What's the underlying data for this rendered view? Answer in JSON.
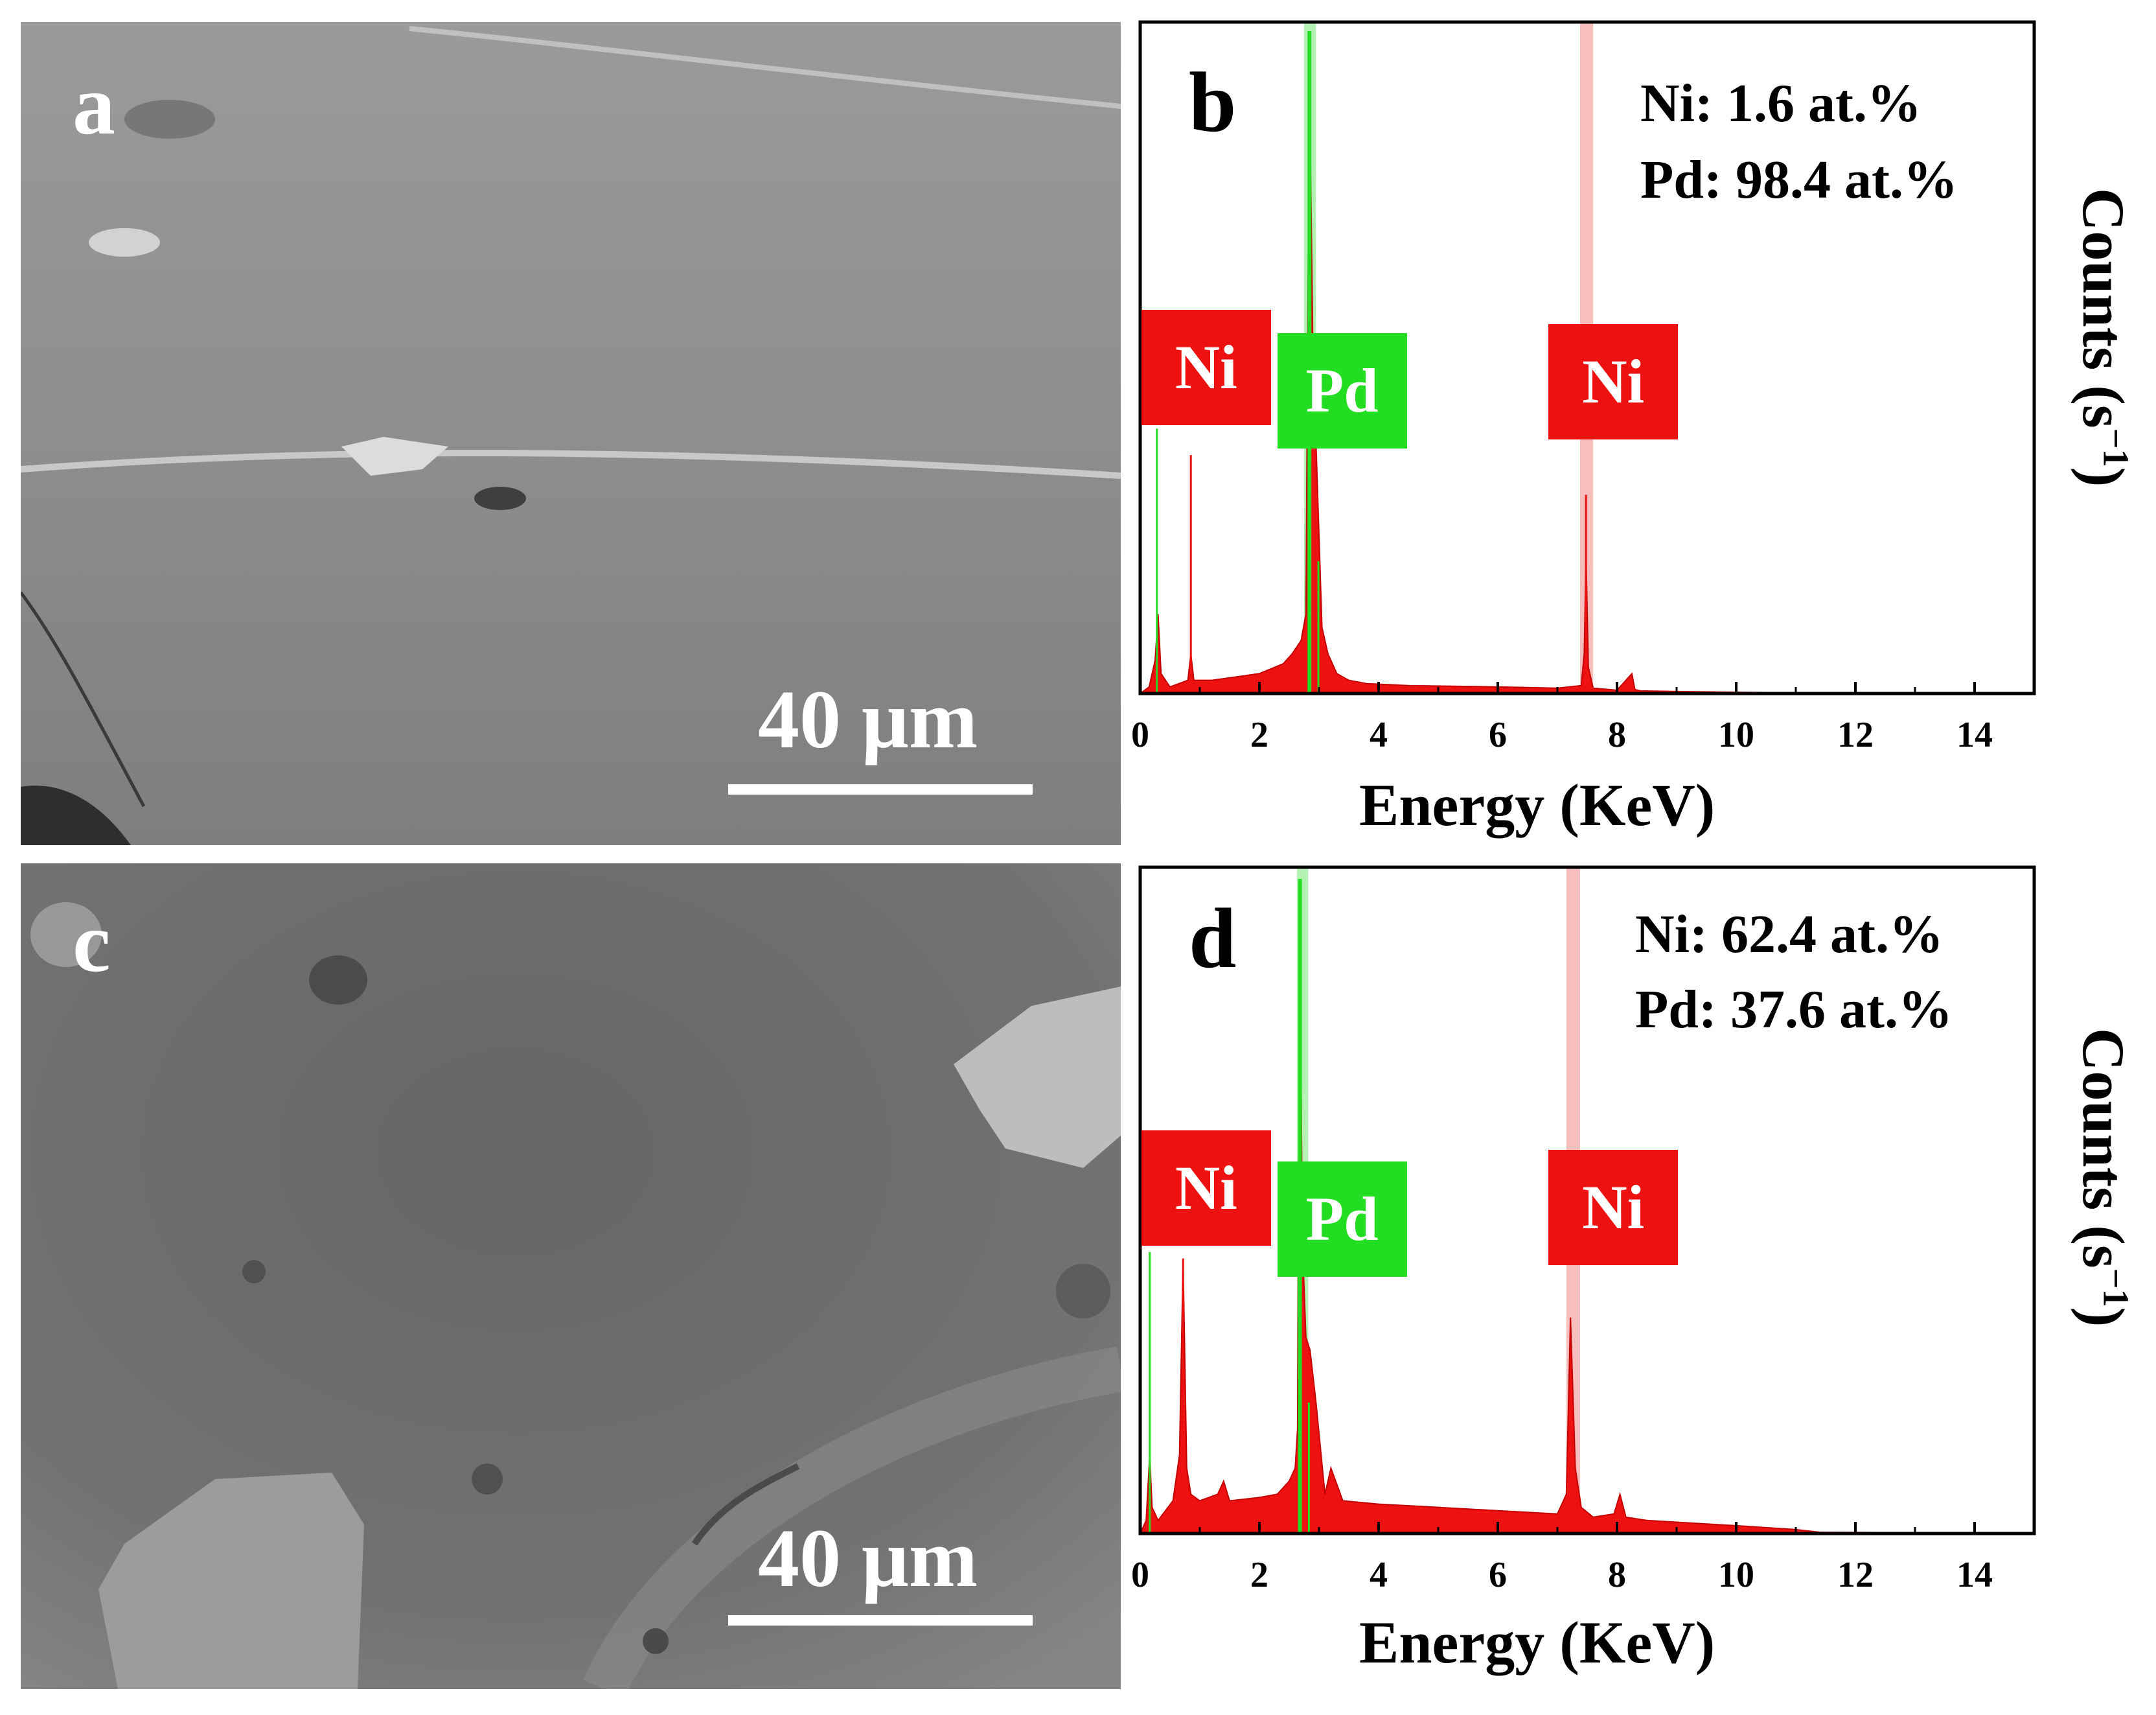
{
  "sem_panels": [
    {
      "letter": "a",
      "scale_label": "40 μm"
    },
    {
      "letter": "c",
      "scale_label": "40 μm"
    }
  ],
  "colors": {
    "ni": "#ee1111",
    "pd": "#22dd22",
    "ni_band": "#f6b3b3",
    "pd_band": "#a6f0a6",
    "axis": "#000000",
    "sem_a": "#8c8c8c",
    "sem_c": "#6e6e6e"
  },
  "chart_data": [
    {
      "panel": "b",
      "type": "area",
      "xlabel": "Energy (KeV)",
      "ylabel_main": "Counts (s",
      "ylabel_sup": "−1",
      "ylabel_end": ")",
      "xlim": [
        0,
        15
      ],
      "xticks": [
        0,
        2,
        4,
        6,
        8,
        10,
        12,
        14
      ],
      "ylim": [
        0,
        1
      ],
      "composition": [
        "Ni: 1.6 at.%",
        "Pd: 98.4 at.%"
      ],
      "peak_labels": [
        {
          "text": "Ni",
          "element": "Ni",
          "energy": 1.0
        },
        {
          "text": "Pd",
          "element": "Pd",
          "energy": 3.5
        },
        {
          "text": "Ni",
          "element": "Ni",
          "energy": 7.8
        }
      ],
      "highlight_bands": [
        {
          "element": "Pd",
          "from": 2.75,
          "to": 2.95
        },
        {
          "element": "Ni",
          "from": 7.38,
          "to": 7.6
        }
      ],
      "lines": [
        {
          "element": "Pd",
          "energy": 0.28,
          "height": 0.4
        },
        {
          "element": "Ni",
          "energy": 0.85,
          "height": 0.36
        },
        {
          "element": "Pd",
          "energy": 2.84,
          "height": 1.0
        },
        {
          "element": "Pd",
          "energy": 2.99,
          "height": 0.2
        },
        {
          "element": "Ni",
          "energy": 7.48,
          "height": 0.3
        }
      ],
      "spectrum": {
        "energy": [
          0,
          0.15,
          0.25,
          0.3,
          0.35,
          0.5,
          0.8,
          0.85,
          0.9,
          1.2,
          1.6,
          2.0,
          2.4,
          2.55,
          2.7,
          2.78,
          2.84,
          2.9,
          2.96,
          3.05,
          3.15,
          3.3,
          3.5,
          3.8,
          4.5,
          6.0,
          7.0,
          7.4,
          7.45,
          7.48,
          7.52,
          7.6,
          8.0,
          8.25,
          8.3,
          8.4,
          9.0,
          10.0,
          11.0,
          15.0
        ],
        "counts": [
          0,
          0.01,
          0.05,
          0.12,
          0.03,
          0.01,
          0.02,
          0.06,
          0.02,
          0.02,
          0.025,
          0.03,
          0.045,
          0.06,
          0.08,
          0.12,
          0.93,
          0.5,
          0.35,
          0.1,
          0.06,
          0.03,
          0.02,
          0.015,
          0.012,
          0.01,
          0.008,
          0.012,
          0.06,
          0.21,
          0.04,
          0.008,
          0.005,
          0.03,
          0.006,
          0.004,
          0.003,
          0.002,
          0.001,
          0
        ]
      }
    },
    {
      "panel": "d",
      "type": "area",
      "xlabel": "Energy (KeV)",
      "ylabel_main": "Counts (s",
      "ylabel_sup": "−1",
      "ylabel_end": ")",
      "xlim": [
        0,
        15
      ],
      "xticks": [
        0,
        2,
        4,
        6,
        8,
        10,
        12,
        14
      ],
      "ylim": [
        0,
        1
      ],
      "composition": [
        "Ni: 62.4 at.%",
        "Pd: 37.6 at.%"
      ],
      "peak_labels": [
        {
          "text": "Ni",
          "element": "Ni",
          "energy": 1.0
        },
        {
          "text": "Pd",
          "element": "Pd",
          "energy": 3.5
        },
        {
          "text": "Ni",
          "element": "Ni",
          "energy": 7.8
        }
      ],
      "highlight_bands": [
        {
          "element": "Pd",
          "from": 2.63,
          "to": 2.82
        },
        {
          "element": "Ni",
          "from": 7.15,
          "to": 7.38
        }
      ],
      "lines": [
        {
          "element": "Pd",
          "energy": 0.16,
          "height": 0.43
        },
        {
          "element": "Ni",
          "energy": 0.72,
          "height": 0.42
        },
        {
          "element": "Pd",
          "energy": 2.68,
          "height": 1.0
        },
        {
          "element": "Pd",
          "energy": 2.83,
          "height": 0.2
        }
      ],
      "spectrum": {
        "energy": [
          0,
          0.1,
          0.16,
          0.2,
          0.3,
          0.55,
          0.66,
          0.72,
          0.78,
          0.85,
          1.0,
          1.3,
          1.4,
          1.5,
          2.0,
          2.3,
          2.5,
          2.6,
          2.64,
          2.68,
          2.72,
          2.78,
          2.85,
          2.95,
          3.1,
          3.2,
          3.4,
          4.0,
          5.0,
          6.0,
          7.0,
          7.15,
          7.22,
          7.3,
          7.4,
          7.6,
          7.95,
          8.05,
          8.15,
          8.5,
          10.0,
          11.0,
          11.4,
          15.0
        ],
        "counts": [
          0,
          0.02,
          0.12,
          0.04,
          0.02,
          0.05,
          0.12,
          0.42,
          0.1,
          0.06,
          0.05,
          0.06,
          0.08,
          0.05,
          0.055,
          0.06,
          0.08,
          0.1,
          0.16,
          0.95,
          0.45,
          0.3,
          0.28,
          0.2,
          0.06,
          0.1,
          0.05,
          0.045,
          0.04,
          0.035,
          0.03,
          0.06,
          0.33,
          0.1,
          0.04,
          0.025,
          0.03,
          0.06,
          0.025,
          0.02,
          0.012,
          0.006,
          0.002,
          0
        ]
      }
    }
  ]
}
